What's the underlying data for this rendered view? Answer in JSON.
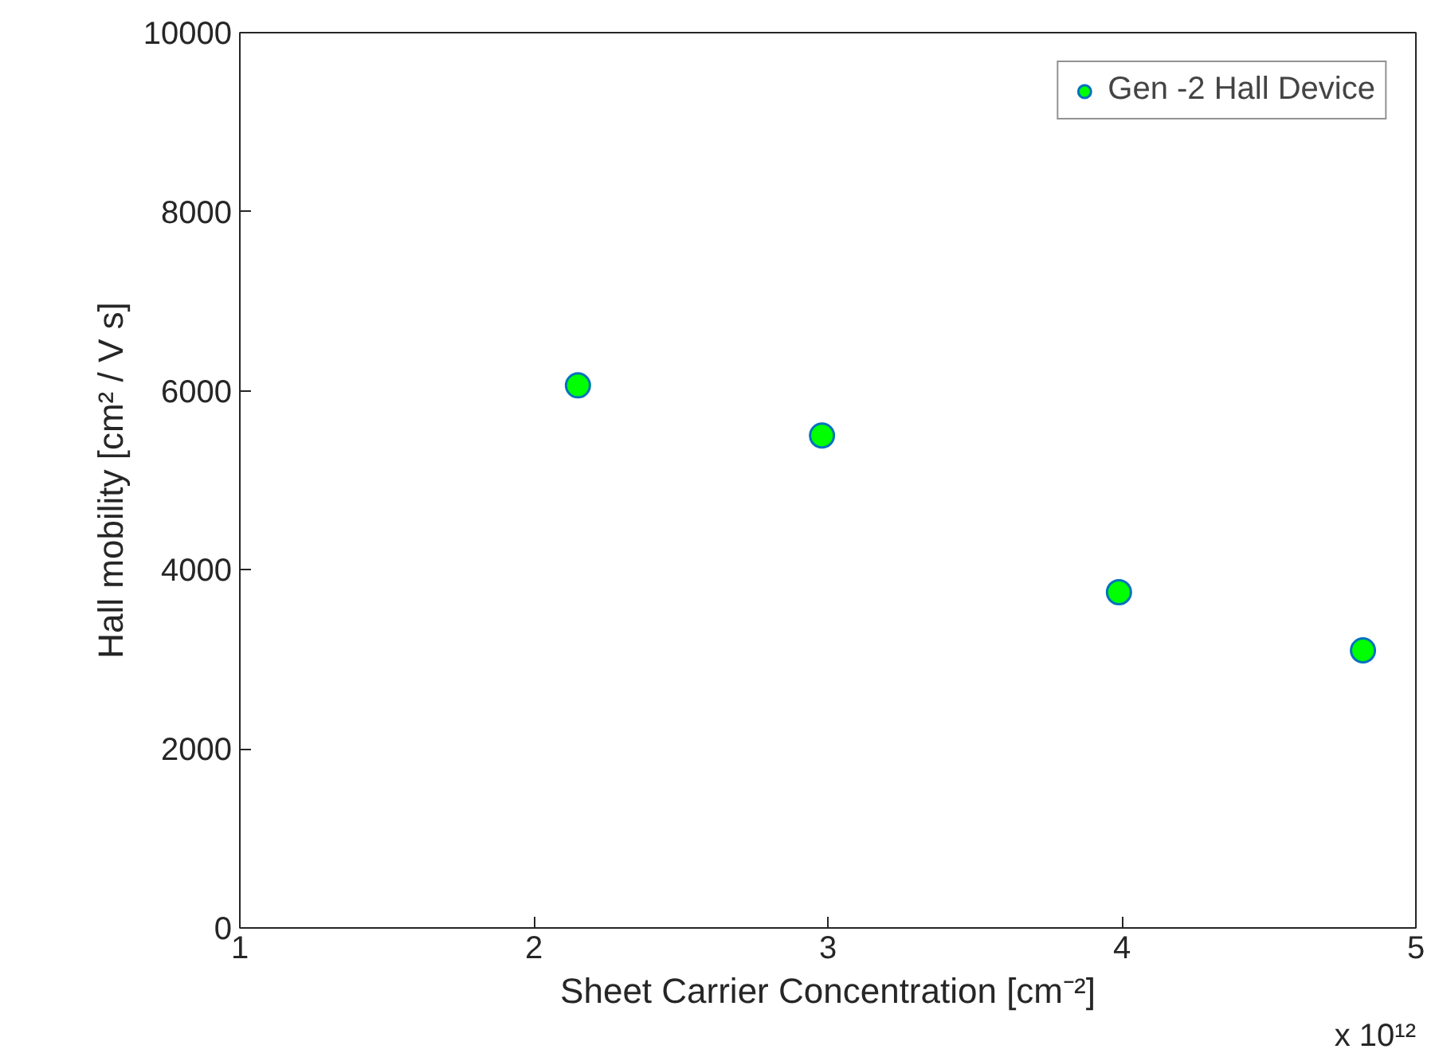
{
  "chart_data": {
    "type": "scatter",
    "xlabel": "Sheet Carrier Concentration [cm⁻²]",
    "ylabel": "Hall mobility [cm² / V s]",
    "annotations": [
      "x 10¹²"
    ],
    "x": [
      2.15,
      2.98,
      3.99,
      4.82
    ],
    "series": [
      {
        "name": "Gen -2 Hall Device",
        "color": "#00ff00",
        "values": [
          6060,
          5500,
          3750,
          3100
        ]
      }
    ],
    "xlim": [
      1,
      5
    ],
    "xticks": [
      1,
      2,
      3,
      4,
      5
    ],
    "ylim": [
      0,
      10000
    ],
    "yticks": [
      0,
      2000,
      4000,
      6000,
      8000,
      10000
    ],
    "marker": "circle",
    "legend": "top right",
    "grid": false
  }
}
